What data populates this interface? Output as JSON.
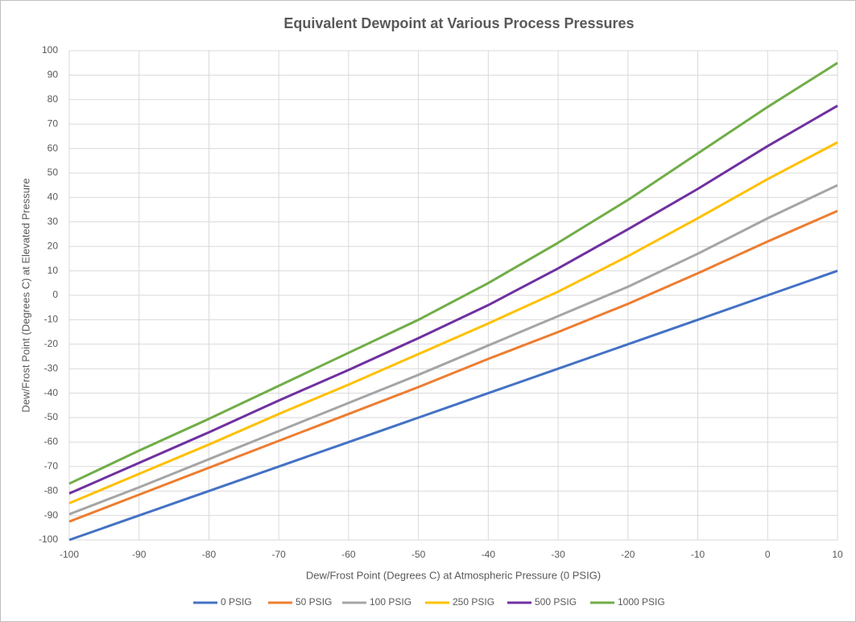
{
  "chart_data": {
    "type": "line",
    "title": "Equivalent Dewpoint at Various Process Pressures",
    "x_label": "Dew/Frost Point (Degrees C) at Atmospheric Pressure (0 PSIG)",
    "y_label": "Dew/Frost Point (Degrees C) at Elevated Pressure",
    "x": [
      -100,
      -90,
      -80,
      -70,
      -60,
      -50,
      -40,
      -30,
      -20,
      -10,
      0,
      10
    ],
    "series": [
      {
        "name": "0 PSIG",
        "color": "#4472c4",
        "values": [
          -100,
          -90,
          -80,
          -70,
          -60,
          -50,
          -40,
          -30,
          -20,
          -10,
          0,
          10
        ]
      },
      {
        "name": "50 PSIG",
        "color": "#ed7d31",
        "values": [
          -92.5,
          -81.5,
          -70.5,
          -59.5,
          -48.5,
          -37.5,
          -26,
          -15,
          -3.5,
          9,
          22,
          34.5
        ]
      },
      {
        "name": "100 PSIG",
        "color": "#a5a5a5",
        "values": [
          -89.5,
          -78.5,
          -67,
          -55.5,
          -44,
          -32.5,
          -20.5,
          -8.5,
          3.5,
          17,
          31.5,
          45
        ]
      },
      {
        "name": "250 PSIG",
        "color": "#ffc000",
        "values": [
          -85,
          -73,
          -61,
          -48.5,
          -36.5,
          -24,
          -11.5,
          1.5,
          16,
          31.5,
          47.5,
          62.5
        ]
      },
      {
        "name": "500 PSIG",
        "color": "#7030a0",
        "values": [
          -81,
          -68.5,
          -56,
          -43,
          -30.5,
          -17.5,
          -4,
          11,
          27,
          43.5,
          61,
          77.5
        ]
      },
      {
        "name": "1000 PSIG",
        "color": "#70ad47",
        "values": [
          -77,
          -63.5,
          -50.5,
          -37,
          -23.5,
          -10,
          5,
          21.5,
          39,
          58,
          77,
          95
        ]
      }
    ],
    "xlim": [
      -100,
      10
    ],
    "xticks": [
      -100,
      -90,
      -80,
      -70,
      -60,
      -50,
      -40,
      -30,
      -20,
      -10,
      0,
      10
    ],
    "ylim": [
      -100,
      100
    ],
    "yticks": [
      -100,
      -90,
      -80,
      -70,
      -60,
      -50,
      -40,
      -30,
      -20,
      -10,
      0,
      10,
      20,
      30,
      40,
      50,
      60,
      70,
      80,
      90,
      100
    ],
    "grid": true,
    "legend": "bottom"
  }
}
